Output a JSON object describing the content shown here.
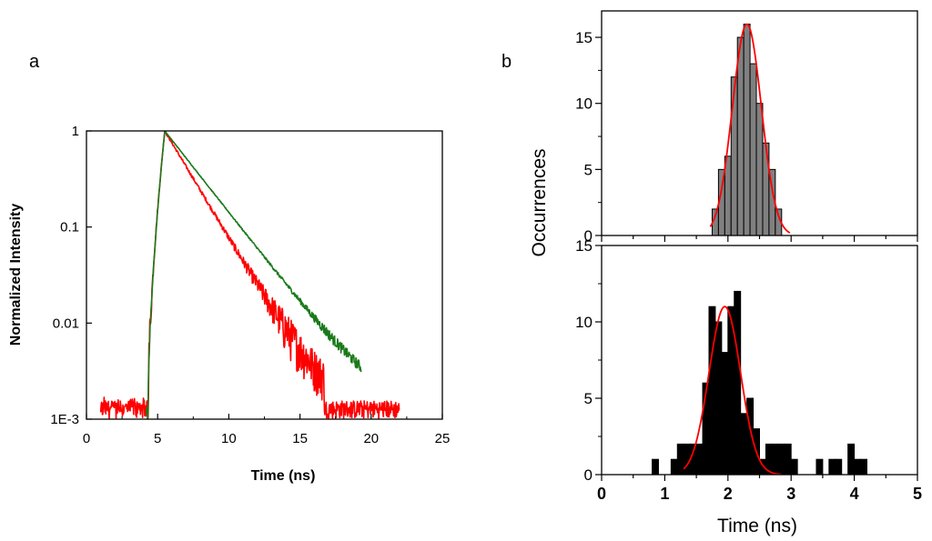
{
  "figure": {
    "label_a": "a",
    "label_b": "b"
  },
  "chart_data": [
    {
      "id": "a",
      "type": "line",
      "xlabel": "Time (ns)",
      "ylabel": "Normalized Intensity",
      "xlim": [
        0,
        25
      ],
      "ylim": [
        0.001,
        1
      ],
      "yscale": "log",
      "xticks": [
        0,
        5,
        10,
        15,
        20,
        25
      ],
      "xtick_labels": [
        "0",
        "5",
        "10",
        "15",
        "20",
        "25"
      ],
      "yticks": [
        0.001,
        0.01,
        0.1,
        1
      ],
      "ytick_labels": [
        "1E-3",
        "0.01",
        "0.1",
        "1"
      ],
      "series": [
        {
          "name": "green decay",
          "color": "#1a7a1a",
          "x_start": 4.2,
          "x_end": 19.3,
          "rise_start": 4.3,
          "peak_time": 5.5,
          "decay_ns": 2.3,
          "floor": 0.001,
          "noise": 0.08
        },
        {
          "name": "red decay",
          "color": "#ff0000",
          "x_start": 1.0,
          "x_end": 22.0,
          "rise_start": 4.3,
          "peak_time": 5.5,
          "decay_ns": 1.75,
          "floor": 0.0011,
          "noise": 0.3
        }
      ]
    },
    {
      "id": "b-top",
      "type": "bar",
      "ylabel": "Occurrences",
      "xlim": [
        0,
        5
      ],
      "ylim": [
        0,
        17
      ],
      "yticks": [
        0,
        5,
        10,
        15
      ],
      "ytick_labels": [
        "0",
        "5",
        "10",
        "15"
      ],
      "bin_width": 0.1,
      "bins": [
        {
          "x": 1.8,
          "y": 2
        },
        {
          "x": 1.9,
          "y": 5
        },
        {
          "x": 2.0,
          "y": 6
        },
        {
          "x": 2.1,
          "y": 12
        },
        {
          "x": 2.2,
          "y": 15
        },
        {
          "x": 2.3,
          "y": 16
        },
        {
          "x": 2.4,
          "y": 13
        },
        {
          "x": 2.5,
          "y": 10
        },
        {
          "x": 2.6,
          "y": 7
        },
        {
          "x": 2.7,
          "y": 5
        },
        {
          "x": 2.8,
          "y": 2
        }
      ],
      "bar_color": "#808080",
      "fit": {
        "name": "Gaussian fit",
        "color": "#ff0000",
        "amplitude": 16,
        "center": 2.3,
        "sigma": 0.23,
        "x_range": [
          1.72,
          2.98
        ]
      }
    },
    {
      "id": "b-bottom",
      "type": "bar",
      "xlabel": "Time (ns)",
      "xlim": [
        0,
        5
      ],
      "ylim": [
        0,
        15
      ],
      "xticks": [
        0,
        1,
        2,
        3,
        4,
        5
      ],
      "xtick_labels": [
        "0",
        "1",
        "2",
        "3",
        "4",
        "5"
      ],
      "yticks": [
        0,
        5,
        10,
        15
      ],
      "ytick_labels": [
        "0",
        "5",
        "10",
        "15"
      ],
      "bin_width": 0.1,
      "bins": [
        {
          "x": 0.85,
          "y": 1
        },
        {
          "x": 1.15,
          "y": 1
        },
        {
          "x": 1.25,
          "y": 2
        },
        {
          "x": 1.35,
          "y": 2
        },
        {
          "x": 1.45,
          "y": 2
        },
        {
          "x": 1.55,
          "y": 2
        },
        {
          "x": 1.65,
          "y": 6
        },
        {
          "x": 1.75,
          "y": 11
        },
        {
          "x": 1.85,
          "y": 10
        },
        {
          "x": 1.95,
          "y": 8
        },
        {
          "x": 2.05,
          "y": 11
        },
        {
          "x": 2.15,
          "y": 12
        },
        {
          "x": 2.25,
          "y": 4
        },
        {
          "x": 2.35,
          "y": 5
        },
        {
          "x": 2.45,
          "y": 3
        },
        {
          "x": 2.55,
          "y": 1
        },
        {
          "x": 2.65,
          "y": 2
        },
        {
          "x": 2.75,
          "y": 2
        },
        {
          "x": 2.85,
          "y": 2
        },
        {
          "x": 2.95,
          "y": 2
        },
        {
          "x": 3.05,
          "y": 1
        },
        {
          "x": 3.45,
          "y": 1
        },
        {
          "x": 3.65,
          "y": 1
        },
        {
          "x": 3.75,
          "y": 1
        },
        {
          "x": 3.95,
          "y": 2
        },
        {
          "x": 4.05,
          "y": 1
        },
        {
          "x": 4.15,
          "y": 1
        }
      ],
      "bar_color": "#000000",
      "fit": {
        "name": "Gaussian fit",
        "color": "#ff0000",
        "amplitude": 11,
        "center": 1.95,
        "sigma": 0.25,
        "x_range": [
          1.3,
          2.85
        ]
      }
    }
  ]
}
